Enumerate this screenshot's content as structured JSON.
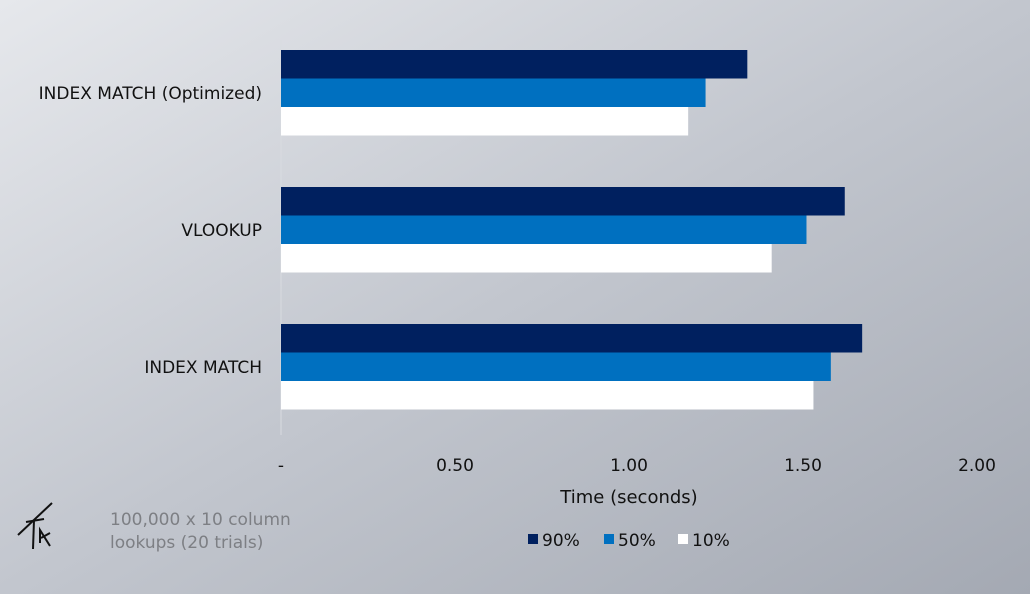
{
  "chart_data": {
    "type": "bar",
    "orientation": "horizontal",
    "categories": [
      "INDEX MATCH (Optimized)",
      "VLOOKUP",
      "INDEX MATCH"
    ],
    "series": [
      {
        "name": "90%",
        "color": "#00205f",
        "values": [
          1.34,
          1.62,
          1.67
        ]
      },
      {
        "name": "50%",
        "color": "#0070c0",
        "values": [
          1.22,
          1.51,
          1.58
        ]
      },
      {
        "name": "10%",
        "color": "#ffffff",
        "values": [
          1.17,
          1.41,
          1.53
        ]
      }
    ],
    "xlabel": "Time (seconds)",
    "ylabel": "",
    "xlim": [
      0,
      2.0
    ],
    "xticks": [
      0,
      0.5,
      1.0,
      1.5,
      2.0
    ],
    "xtick_labels": [
      "-",
      "0.50",
      "1.00",
      "1.50",
      "2.00"
    ],
    "grid": false,
    "legend_position": "bottom"
  },
  "annotation": {
    "logo_text": "TK",
    "line1": "100,000 x 10 column",
    "line2": "lookups (20 trials)"
  }
}
